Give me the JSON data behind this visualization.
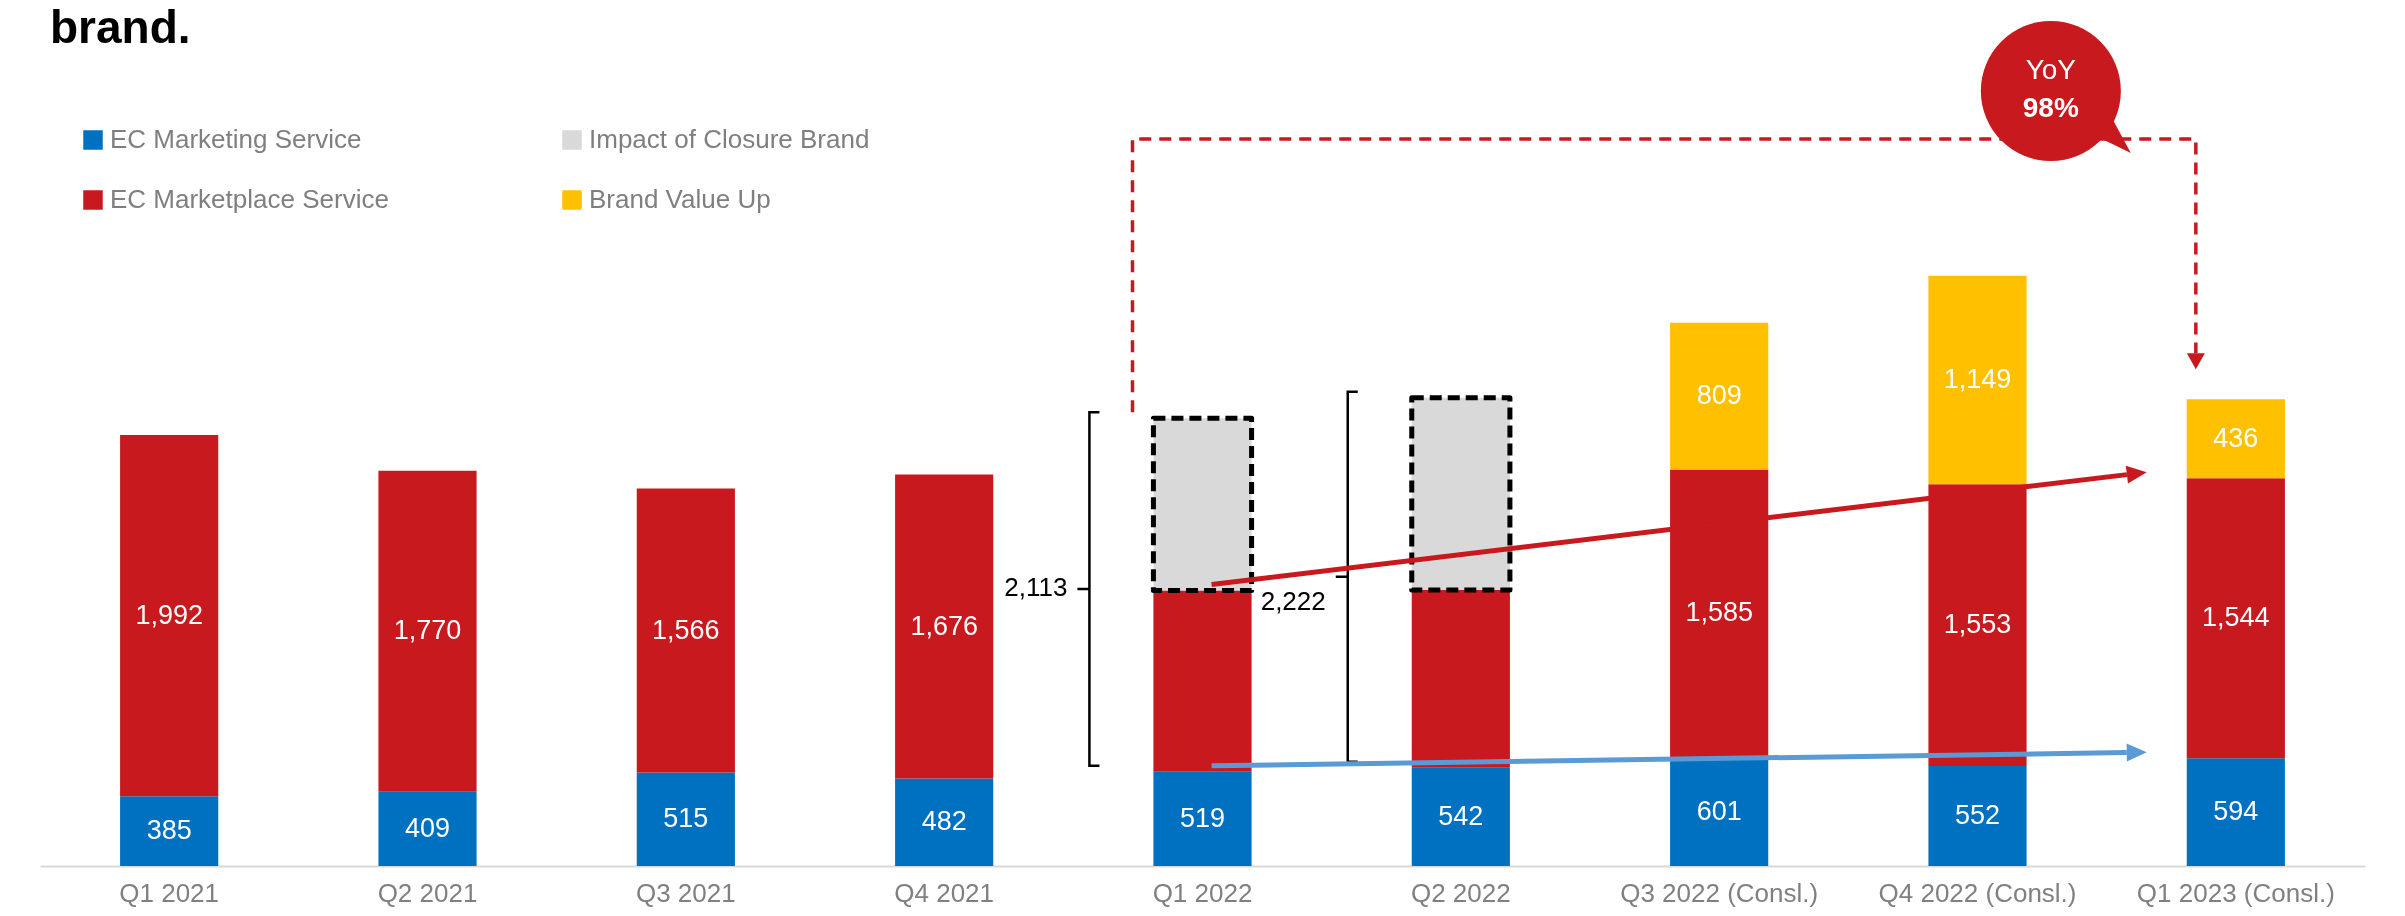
{
  "chart_data": {
    "type": "bar",
    "stacked": true,
    "title": "brand.",
    "categories": [
      "Q1 2021",
      "Q2 2021",
      "Q3 2021",
      "Q4 2021",
      "Q1 2022",
      "Q2 2022",
      "Q3 2022 (Consl.)",
      "Q4 2022 (Consl.)",
      "Q1 2023 (Consl.)"
    ],
    "series": [
      {
        "name": "EC Marketing Service",
        "color": "#0070c0",
        "values": [
          385,
          409,
          515,
          482,
          519,
          542,
          601,
          552,
          594
        ],
        "value_labels": [
          "385",
          "409",
          "515",
          "482",
          "519",
          "542",
          "601",
          "552",
          "594"
        ]
      },
      {
        "name": "EC Marketplace Service",
        "color": "#c8191e",
        "values": [
          1992,
          1770,
          1566,
          1676,
          1000,
          980,
          1585,
          1553,
          1544
        ],
        "value_labels": [
          "1,992",
          "1,770",
          "1,566",
          "1,676",
          null,
          null,
          "1,585",
          "1,553",
          "1,544"
        ]
      },
      {
        "name": "Impact of Closure Brand",
        "color": "#d9d9d9",
        "line_style": "dashed",
        "values": [
          null,
          null,
          null,
          null,
          950,
          1060,
          null,
          null,
          null
        ]
      },
      {
        "name": "Brand Value Up",
        "color": "#ffc000",
        "values": [
          null,
          null,
          null,
          null,
          null,
          null,
          809,
          1149,
          436
        ],
        "value_labels": [
          null,
          null,
          null,
          null,
          null,
          null,
          "809",
          "1,149",
          "436"
        ]
      }
    ],
    "annotations": [
      "2,113",
      "2,222",
      "YoY 98%"
    ],
    "legend": "top left",
    "grid": false
  }
}
